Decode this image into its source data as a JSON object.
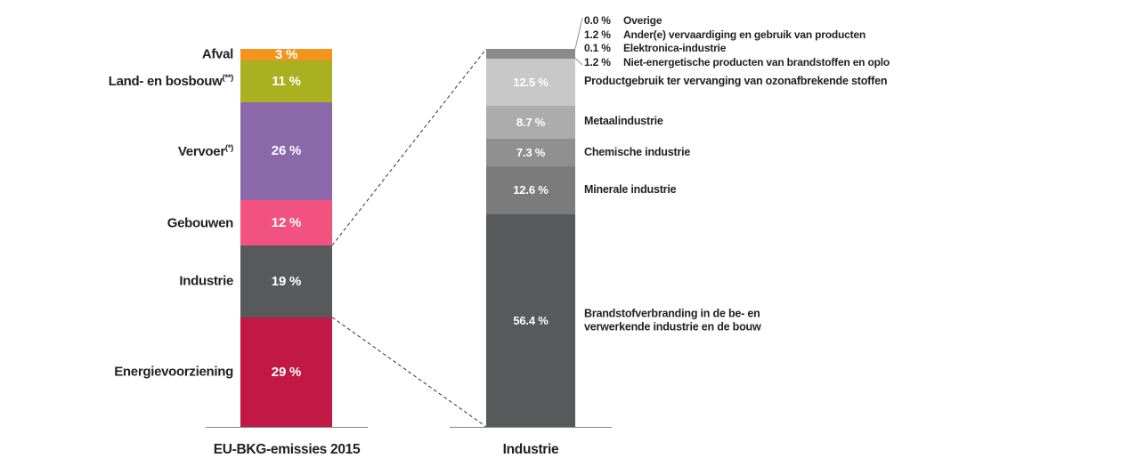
{
  "colors": {
    "background": "#ffffff",
    "text": "#231f20",
    "axis_line": "#808285",
    "connector_dash": "#333333",
    "callout_line": "#919191",
    "segment_value_text": "#ffffff"
  },
  "chart_data": [
    {
      "type": "bar",
      "stacked": true,
      "orientation": "vertical",
      "xlabel": "EU-BKG-emissies 2015",
      "value_unit": "%",
      "ylim": [
        0,
        100
      ],
      "segments": [
        {
          "label": "Afval",
          "sup": "",
          "value": 3,
          "value_label": "3 %",
          "color": "#f3941d"
        },
        {
          "label": "Land- en bosbouw",
          "sup": "(**)",
          "value": 11,
          "value_label": "11 %",
          "color": "#a9b121"
        },
        {
          "label": "Vervoer",
          "sup": "(*)",
          "value": 26,
          "value_label": "26 %",
          "color": "#8b68aa"
        },
        {
          "label": "Gebouwen",
          "sup": "",
          "value": 12,
          "value_label": "12 %",
          "color": "#f1527f"
        },
        {
          "label": "Industrie",
          "sup": "",
          "value": 19,
          "value_label": "19 %",
          "color": "#58595b"
        },
        {
          "label": "Energievoorziening",
          "sup": "",
          "value": 29,
          "value_label": "29 %",
          "color": "#c21845"
        }
      ]
    },
    {
      "type": "bar",
      "stacked": true,
      "orientation": "vertical",
      "xlabel": "Industrie",
      "value_unit": "%",
      "ylim": [
        0,
        100
      ],
      "segments": [
        {
          "label": "",
          "value": 2.5,
          "value_label": "",
          "color": "#8a8a8a"
        },
        {
          "label": "Productgebruik ter vervanging van ozonafbrekende stoffen",
          "value": 12.5,
          "value_label": "12.5 %",
          "color": "#c8c8c8"
        },
        {
          "label": "Metaalindustrie",
          "value": 8.7,
          "value_label": "8.7 %",
          "color": "#acacac"
        },
        {
          "label": "Chemische industrie",
          "value": 7.3,
          "value_label": "7.3 %",
          "color": "#909090"
        },
        {
          "label": "Minerale industrie",
          "value": 12.6,
          "value_label": "12.6 %",
          "color": "#7b7b7b"
        },
        {
          "label": "Brandstofverbranding in de be- en\nverwerkende industrie en de bouw",
          "value": 56.4,
          "value_label": "56.4 %",
          "color": "#58595b"
        }
      ],
      "callout_items": [
        {
          "value_label": "0.0 %",
          "label": "Overige"
        },
        {
          "value_label": "1.2 %",
          "label": "Ander(e) vervaardiging en gebruik van producten"
        },
        {
          "value_label": "0.1 %",
          "label": "Elektronica-industrie"
        },
        {
          "value_label": "1.2 %",
          "label": "Niet-energetische producten van brandstoffen en oplo"
        }
      ]
    }
  ]
}
